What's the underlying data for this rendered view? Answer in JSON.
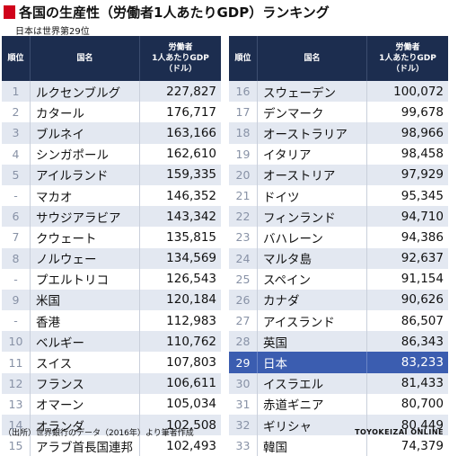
{
  "title": "各国の生産性（労働者1人あたりGDP）ランキング",
  "subtitle": "日本は世界第29位",
  "headers": {
    "rank": "順位",
    "name": "国名",
    "value_line1": "労働者",
    "value_line2": "1人あたりGDP",
    "value_line3": "（ドル）"
  },
  "left_rows": [
    {
      "rank": "1",
      "name": "ルクセンブルグ",
      "value": "227,827"
    },
    {
      "rank": "2",
      "name": "カタール",
      "value": "176,717"
    },
    {
      "rank": "3",
      "name": "ブルネイ",
      "value": "163,166"
    },
    {
      "rank": "4",
      "name": "シンガポール",
      "value": "162,610"
    },
    {
      "rank": "5",
      "name": "アイルランド",
      "value": "159,335"
    },
    {
      "rank": "-",
      "name": "マカオ",
      "value": "146,352"
    },
    {
      "rank": "6",
      "name": "サウジアラビア",
      "value": "143,342"
    },
    {
      "rank": "7",
      "name": "クウェート",
      "value": "135,815"
    },
    {
      "rank": "8",
      "name": "ノルウェー",
      "value": "134,569"
    },
    {
      "rank": "-",
      "name": "プエルトリコ",
      "value": "126,543"
    },
    {
      "rank": "9",
      "name": "米国",
      "value": "120,184"
    },
    {
      "rank": "-",
      "name": "香港",
      "value": "112,983"
    },
    {
      "rank": "10",
      "name": "ベルギー",
      "value": "110,762"
    },
    {
      "rank": "11",
      "name": "スイス",
      "value": "107,803"
    },
    {
      "rank": "12",
      "name": "フランス",
      "value": "106,611"
    },
    {
      "rank": "13",
      "name": "オマーン",
      "value": "105,034"
    },
    {
      "rank": "14",
      "name": "オランダ",
      "value": "102,508"
    },
    {
      "rank": "15",
      "name": "アラブ首長国連邦",
      "value": "102,493"
    }
  ],
  "right_rows": [
    {
      "rank": "16",
      "name": "スウェーデン",
      "value": "100,072"
    },
    {
      "rank": "17",
      "name": "デンマーク",
      "value": "99,678"
    },
    {
      "rank": "18",
      "name": "オーストラリア",
      "value": "98,966"
    },
    {
      "rank": "19",
      "name": "イタリア",
      "value": "98,458"
    },
    {
      "rank": "20",
      "name": "オーストリア",
      "value": "97,929"
    },
    {
      "rank": "21",
      "name": "ドイツ",
      "value": "95,345"
    },
    {
      "rank": "22",
      "name": "フィンランド",
      "value": "94,710"
    },
    {
      "rank": "23",
      "name": "バハレーン",
      "value": "94,386"
    },
    {
      "rank": "24",
      "name": "マルタ島",
      "value": "92,637"
    },
    {
      "rank": "25",
      "name": "スペイン",
      "value": "91,154"
    },
    {
      "rank": "26",
      "name": "カナダ",
      "value": "90,626"
    },
    {
      "rank": "27",
      "name": "アイスランド",
      "value": "86,507"
    },
    {
      "rank": "28",
      "name": "英国",
      "value": "86,343"
    },
    {
      "rank": "29",
      "name": "日本",
      "value": "83,233",
      "highlight": true
    },
    {
      "rank": "30",
      "name": "イスラエル",
      "value": "81,433"
    },
    {
      "rank": "31",
      "name": "赤道ギニア",
      "value": "80,700"
    },
    {
      "rank": "32",
      "name": "ギリシャ",
      "value": "80,449"
    },
    {
      "rank": "33",
      "name": "韓国",
      "value": "74,379"
    }
  ],
  "colors": {
    "header_bg": "#1c2d4f",
    "row_alt": "#e3e8f1",
    "highlight": "#3b5db0",
    "title_mark": "#d0021b"
  },
  "footer": {
    "source": "（出所）世界銀行のデータ（2016年）より筆者作成",
    "brand": "TOYOKEIZAI ONLINE"
  }
}
